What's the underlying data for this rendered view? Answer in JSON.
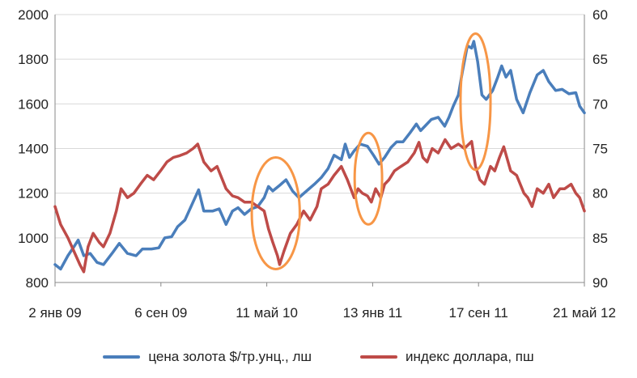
{
  "chart_data": {
    "type": "line",
    "title": "",
    "x_ticks": [
      "2 янв 09",
      "6 сен 09",
      "11 май 10",
      "13 янв 11",
      "17 сен 11",
      "21 май 12"
    ],
    "xlim": [
      "2009-01-02",
      "2012-05-21"
    ],
    "y_left": {
      "ticks": [
        "2000",
        "1800",
        "1600",
        "1400",
        "1200",
        "1000",
        "800"
      ],
      "range": [
        800,
        2000
      ]
    },
    "y_right": {
      "ticks": [
        "60",
        "65",
        "70",
        "75",
        "80",
        "85",
        "90"
      ],
      "range": [
        60,
        90
      ],
      "inverted": true
    },
    "grid": "horizontal",
    "legend_position": "bottom",
    "series": [
      {
        "name": "цена золота $/тр.унц., лш",
        "axis": "left",
        "color": "#4a7ebb",
        "points": [
          [
            "2009-01-02",
            880
          ],
          [
            "2009-01-15",
            860
          ],
          [
            "2009-02-01",
            920
          ],
          [
            "2009-02-15",
            960
          ],
          [
            "2009-02-25",
            990
          ],
          [
            "2009-03-10",
            920
          ],
          [
            "2009-03-25",
            930
          ],
          [
            "2009-04-10",
            890
          ],
          [
            "2009-04-25",
            880
          ],
          [
            "2009-05-15",
            930
          ],
          [
            "2009-06-01",
            975
          ],
          [
            "2009-06-20",
            930
          ],
          [
            "2009-07-10",
            920
          ],
          [
            "2009-07-25",
            950
          ],
          [
            "2009-08-15",
            950
          ],
          [
            "2009-09-01",
            955
          ],
          [
            "2009-09-15",
            1000
          ],
          [
            "2009-10-01",
            1005
          ],
          [
            "2009-10-15",
            1050
          ],
          [
            "2009-11-01",
            1080
          ],
          [
            "2009-11-20",
            1160
          ],
          [
            "2009-12-03",
            1215
          ],
          [
            "2009-12-15",
            1120
          ],
          [
            "2010-01-05",
            1120
          ],
          [
            "2010-01-20",
            1130
          ],
          [
            "2010-02-05",
            1060
          ],
          [
            "2010-02-20",
            1120
          ],
          [
            "2010-03-05",
            1135
          ],
          [
            "2010-03-20",
            1105
          ],
          [
            "2010-04-05",
            1130
          ],
          [
            "2010-04-20",
            1140
          ],
          [
            "2010-05-05",
            1180
          ],
          [
            "2010-05-15",
            1230
          ],
          [
            "2010-05-25",
            1210
          ],
          [
            "2010-06-10",
            1235
          ],
          [
            "2010-06-25",
            1260
          ],
          [
            "2010-07-10",
            1210
          ],
          [
            "2010-07-25",
            1180
          ],
          [
            "2010-08-15",
            1215
          ],
          [
            "2010-08-30",
            1240
          ],
          [
            "2010-09-15",
            1270
          ],
          [
            "2010-10-01",
            1310
          ],
          [
            "2010-10-15",
            1370
          ],
          [
            "2010-11-01",
            1350
          ],
          [
            "2010-11-10",
            1420
          ],
          [
            "2010-11-20",
            1360
          ],
          [
            "2010-12-01",
            1390
          ],
          [
            "2010-12-15",
            1420
          ],
          [
            "2011-01-01",
            1410
          ],
          [
            "2011-01-15",
            1370
          ],
          [
            "2011-01-28",
            1330
          ],
          [
            "2011-02-10",
            1360
          ],
          [
            "2011-02-25",
            1405
          ],
          [
            "2011-03-10",
            1430
          ],
          [
            "2011-03-25",
            1430
          ],
          [
            "2011-04-10",
            1470
          ],
          [
            "2011-04-25",
            1510
          ],
          [
            "2011-05-05",
            1480
          ],
          [
            "2011-05-15",
            1500
          ],
          [
            "2011-05-30",
            1530
          ],
          [
            "2011-06-15",
            1540
          ],
          [
            "2011-06-30",
            1500
          ],
          [
            "2011-07-10",
            1540
          ],
          [
            "2011-07-20",
            1590
          ],
          [
            "2011-08-01",
            1640
          ],
          [
            "2011-08-10",
            1740
          ],
          [
            "2011-08-22",
            1860
          ],
          [
            "2011-09-01",
            1850
          ],
          [
            "2011-09-06",
            1880
          ],
          [
            "2011-09-15",
            1790
          ],
          [
            "2011-09-25",
            1640
          ],
          [
            "2011-10-05",
            1620
          ],
          [
            "2011-10-20",
            1660
          ],
          [
            "2011-11-01",
            1720
          ],
          [
            "2011-11-10",
            1770
          ],
          [
            "2011-11-20",
            1720
          ],
          [
            "2011-12-01",
            1750
          ],
          [
            "2011-12-15",
            1620
          ],
          [
            "2011-12-30",
            1560
          ],
          [
            "2012-01-15",
            1650
          ],
          [
            "2012-02-01",
            1730
          ],
          [
            "2012-02-15",
            1750
          ],
          [
            "2012-02-28",
            1700
          ],
          [
            "2012-03-15",
            1660
          ],
          [
            "2012-03-30",
            1665
          ],
          [
            "2012-04-15",
            1645
          ],
          [
            "2012-05-01",
            1650
          ],
          [
            "2012-05-10",
            1590
          ],
          [
            "2012-05-21",
            1560
          ]
        ]
      },
      {
        "name": "индекс доллара, пш",
        "axis": "right",
        "color": "#be4b48",
        "points": [
          [
            "2009-01-02",
            81.5
          ],
          [
            "2009-01-15",
            83.5
          ],
          [
            "2009-02-01",
            85.0
          ],
          [
            "2009-02-15",
            86.5
          ],
          [
            "2009-03-01",
            88.0
          ],
          [
            "2009-03-10",
            88.8
          ],
          [
            "2009-03-20",
            86.0
          ],
          [
            "2009-04-01",
            84.5
          ],
          [
            "2009-04-15",
            85.5
          ],
          [
            "2009-04-25",
            86.0
          ],
          [
            "2009-05-10",
            84.5
          ],
          [
            "2009-05-25",
            82.0
          ],
          [
            "2009-06-05",
            79.5
          ],
          [
            "2009-06-20",
            80.5
          ],
          [
            "2009-07-05",
            80.0
          ],
          [
            "2009-07-20",
            79.0
          ],
          [
            "2009-08-05",
            78.0
          ],
          [
            "2009-08-20",
            78.5
          ],
          [
            "2009-09-05",
            77.5
          ],
          [
            "2009-09-20",
            76.5
          ],
          [
            "2009-10-05",
            76.0
          ],
          [
            "2009-10-20",
            75.8
          ],
          [
            "2009-11-05",
            75.5
          ],
          [
            "2009-11-20",
            75.0
          ],
          [
            "2009-12-01",
            74.5
          ],
          [
            "2009-12-15",
            76.5
          ],
          [
            "2010-01-01",
            77.5
          ],
          [
            "2010-01-15",
            77.0
          ],
          [
            "2010-02-05",
            79.5
          ],
          [
            "2010-02-20",
            80.3
          ],
          [
            "2010-03-05",
            80.5
          ],
          [
            "2010-03-20",
            81.0
          ],
          [
            "2010-04-05",
            81.0
          ],
          [
            "2010-04-20",
            81.5
          ],
          [
            "2010-05-05",
            82.0
          ],
          [
            "2010-05-15",
            84.0
          ],
          [
            "2010-05-25",
            85.5
          ],
          [
            "2010-06-05",
            87.0
          ],
          [
            "2010-06-10",
            88.0
          ],
          [
            "2010-06-20",
            86.5
          ],
          [
            "2010-07-05",
            84.5
          ],
          [
            "2010-07-20",
            83.5
          ],
          [
            "2010-08-05",
            82.0
          ],
          [
            "2010-08-20",
            83.0
          ],
          [
            "2010-09-05",
            81.5
          ],
          [
            "2010-09-15",
            79.5
          ],
          [
            "2010-10-01",
            79.0
          ],
          [
            "2010-10-15",
            78.0
          ],
          [
            "2010-11-01",
            77.0
          ],
          [
            "2010-11-15",
            78.5
          ],
          [
            "2010-12-01",
            80.5
          ],
          [
            "2010-12-10",
            79.5
          ],
          [
            "2010-12-20",
            80.0
          ],
          [
            "2011-01-01",
            80.3
          ],
          [
            "2011-01-10",
            81.0
          ],
          [
            "2011-01-20",
            79.5
          ],
          [
            "2011-02-01",
            80.5
          ],
          [
            "2011-02-10",
            79.0
          ],
          [
            "2011-02-20",
            78.5
          ],
          [
            "2011-03-05",
            77.5
          ],
          [
            "2011-03-20",
            77.0
          ],
          [
            "2011-04-05",
            76.5
          ],
          [
            "2011-04-20",
            75.5
          ],
          [
            "2011-05-01",
            74.3
          ],
          [
            "2011-05-10",
            76.0
          ],
          [
            "2011-05-20",
            76.5
          ],
          [
            "2011-06-01",
            75.0
          ],
          [
            "2011-06-15",
            75.5
          ],
          [
            "2011-07-01",
            74.0
          ],
          [
            "2011-07-15",
            75.0
          ],
          [
            "2011-08-01",
            74.5
          ],
          [
            "2011-08-15",
            75.0
          ],
          [
            "2011-09-01",
            74.2
          ],
          [
            "2011-09-10",
            77.0
          ],
          [
            "2011-09-20",
            78.5
          ],
          [
            "2011-10-01",
            79.0
          ],
          [
            "2011-10-15",
            77.0
          ],
          [
            "2011-10-25",
            77.5
          ],
          [
            "2011-11-05",
            76.0
          ],
          [
            "2011-11-15",
            74.8
          ],
          [
            "2011-12-01",
            77.5
          ],
          [
            "2011-12-15",
            78.0
          ],
          [
            "2012-01-01",
            80.0
          ],
          [
            "2012-01-10",
            80.5
          ],
          [
            "2012-01-20",
            81.5
          ],
          [
            "2012-02-01",
            79.5
          ],
          [
            "2012-02-15",
            80.0
          ],
          [
            "2012-02-28",
            79.0
          ],
          [
            "2012-03-10",
            80.5
          ],
          [
            "2012-03-25",
            79.5
          ],
          [
            "2012-04-05",
            79.5
          ],
          [
            "2012-04-20",
            79.0
          ],
          [
            "2012-05-01",
            80.0
          ],
          [
            "2012-05-10",
            80.5
          ],
          [
            "2012-05-21",
            82.0
          ]
        ]
      }
    ],
    "annotations": [
      {
        "type": "ellipse",
        "color": "#f79646",
        "center": [
          "2010-06-01",
          1110
        ],
        "semi_axes_days": 56,
        "semi_axes_value": 250
      },
      {
        "type": "ellipse",
        "color": "#f79646",
        "center": [
          "2011-01-03",
          1265
        ],
        "semi_axes_days": 32,
        "semi_axes_value": 205
      },
      {
        "type": "ellipse",
        "color": "#f79646",
        "center": [
          "2011-09-10",
          1610
        ],
        "semi_axes_days": 35,
        "semi_axes_value": 305
      }
    ]
  }
}
